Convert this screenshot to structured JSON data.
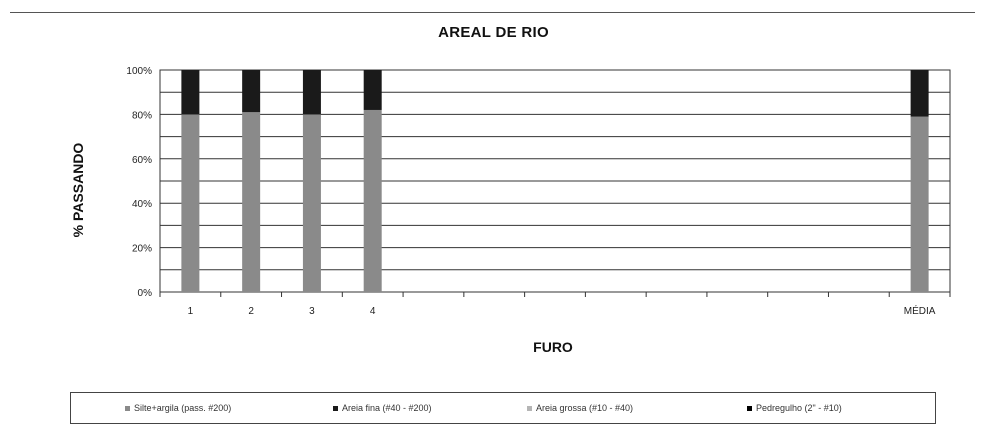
{
  "chart_data": {
    "type": "bar",
    "stacked": true,
    "title": "AREAL DE RIO",
    "xlabel": "FURO",
    "ylabel": "% PASSANDO",
    "ylim": [
      0,
      100
    ],
    "yticks": [
      "0%",
      "20%",
      "40%",
      "60%",
      "80%",
      "100%"
    ],
    "grid": true,
    "legend_position": "bottom",
    "categories": [
      "1",
      "2",
      "3",
      "4",
      "",
      "",
      "",
      "",
      "",
      "",
      "",
      "",
      "MÉDIA"
    ],
    "series": [
      {
        "name": "Silte+argila (pass. #200)",
        "color": "#8a8a8a",
        "values": [
          80,
          81,
          80,
          82,
          null,
          null,
          null,
          null,
          null,
          null,
          null,
          null,
          79
        ]
      },
      {
        "name": "Areia fina (#40 - #200)",
        "color": "#1a1a1a",
        "values": [
          20,
          19,
          20,
          18,
          null,
          null,
          null,
          null,
          null,
          null,
          null,
          null,
          21
        ]
      },
      {
        "name": "Areia grossa (#10 - #40)",
        "color": "#b5b5b5",
        "values": [
          0,
          0,
          0,
          0,
          null,
          null,
          null,
          null,
          null,
          null,
          null,
          null,
          0
        ]
      },
      {
        "name": "Pedregulho (2\" - #10)",
        "color": "#000000",
        "values": [
          0,
          0,
          0,
          0,
          null,
          null,
          null,
          null,
          null,
          null,
          null,
          null,
          0
        ]
      }
    ]
  }
}
